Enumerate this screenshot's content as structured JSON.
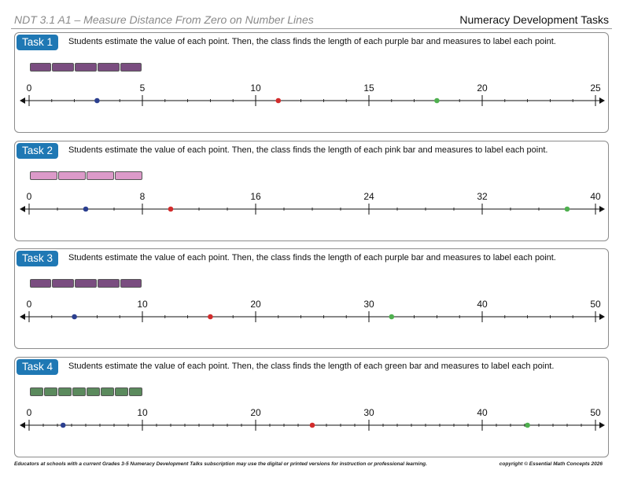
{
  "header": {
    "title": "NDT 3.1 A1 – Measure Distance From Zero on Number Lines",
    "series": "Numeracy Development Tasks"
  },
  "colors": {
    "purple": "#7a4d80",
    "pink": "#dc9ac9",
    "green": "#5b8a5d",
    "badge": "#1f78b4",
    "dot_blue": "#2b3f8f",
    "dot_red": "#d22c2c",
    "dot_green": "#4fb04f"
  },
  "tasks": [
    {
      "badge": "Task 1",
      "instruction": "Students estimate the value of each point. Then, the class finds the length of each purple bar and measures to label each point.",
      "bar_color": "purple",
      "bar_segments": 5,
      "bar_length": 5,
      "axis_max": 25,
      "ticks": [
        "0",
        "5",
        "10",
        "15",
        "20",
        "25"
      ],
      "points": [
        {
          "color": "dot_blue",
          "value": 3
        },
        {
          "color": "dot_red",
          "value": 11
        },
        {
          "color": "dot_green",
          "value": 18
        }
      ]
    },
    {
      "badge": "Task 2",
      "instruction": "Students estimate the value of each point. Then, the class finds the length of each pink bar and measures to label each point.",
      "bar_color": "pink",
      "bar_segments": 4,
      "bar_length": 8,
      "axis_max": 40,
      "ticks": [
        "0",
        "8",
        "16",
        "24",
        "32",
        "40"
      ],
      "points": [
        {
          "color": "dot_blue",
          "value": 4
        },
        {
          "color": "dot_red",
          "value": 10
        },
        {
          "color": "dot_green",
          "value": 38
        }
      ]
    },
    {
      "badge": "Task 3",
      "instruction": "Students estimate the value of each point. Then, the class finds the length of each purple bar and measures to label each point.",
      "bar_color": "purple",
      "bar_segments": 5,
      "bar_length": 10,
      "axis_max": 50,
      "ticks": [
        "0",
        "10",
        "20",
        "30",
        "40",
        "50"
      ],
      "points": [
        {
          "color": "dot_blue",
          "value": 4
        },
        {
          "color": "dot_red",
          "value": 16
        },
        {
          "color": "dot_green",
          "value": 32
        }
      ]
    },
    {
      "badge": "Task 4",
      "instruction": "Students estimate the value of each point. Then, the class finds the length of each green bar and measures to label each point.",
      "bar_color": "green",
      "bar_segments": 8,
      "bar_length": 10,
      "axis_max": 50,
      "ticks": [
        "0",
        "10",
        "20",
        "30",
        "40",
        "50"
      ],
      "points": [
        {
          "color": "dot_blue",
          "value": 3
        },
        {
          "color": "dot_red",
          "value": 25
        },
        {
          "color": "dot_green",
          "value": 44
        }
      ]
    }
  ],
  "footer": {
    "left": "Educators at schools with a current Grades 3-5 Numeracy Development Talks subscription may use the digital or printed versions for instruction or professional learning.",
    "right": "copyright © Essential Math Concepts 2026"
  }
}
